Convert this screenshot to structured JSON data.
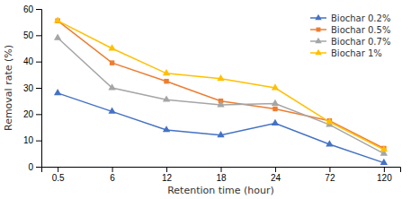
{
  "chart_data": {
    "type": "line",
    "xlabel": "Retention time (hour)",
    "ylabel": "Removal rate (%)",
    "categories": [
      "0.5",
      "6",
      "12",
      "18",
      "24",
      "72",
      "120"
    ],
    "series": [
      {
        "name": "Biochar 0.2%",
        "color": "#4472C4",
        "marker": "triangle",
        "values": [
          28.0,
          21.0,
          14.0,
          12.0,
          16.5,
          8.5,
          1.5
        ]
      },
      {
        "name": "Biochar 0.5%",
        "color": "#ED7D31",
        "marker": "square",
        "values": [
          55.5,
          39.5,
          32.5,
          25.0,
          22.0,
          17.5,
          7.0
        ]
      },
      {
        "name": "Biochar 0.7%",
        "color": "#A5A5A5",
        "marker": "triangle",
        "values": [
          49.0,
          30.0,
          25.5,
          23.5,
          24.0,
          16.0,
          5.0
        ]
      },
      {
        "name": "Biochar 1%",
        "color": "#FFC000",
        "marker": "triangle",
        "values": [
          55.5,
          45.0,
          35.5,
          33.5,
          30.0,
          17.0,
          6.5
        ]
      }
    ],
    "ylim": [
      0,
      60
    ],
    "yticks": [
      0,
      10,
      20,
      30,
      40,
      50,
      60
    ],
    "legend": "upper right"
  }
}
